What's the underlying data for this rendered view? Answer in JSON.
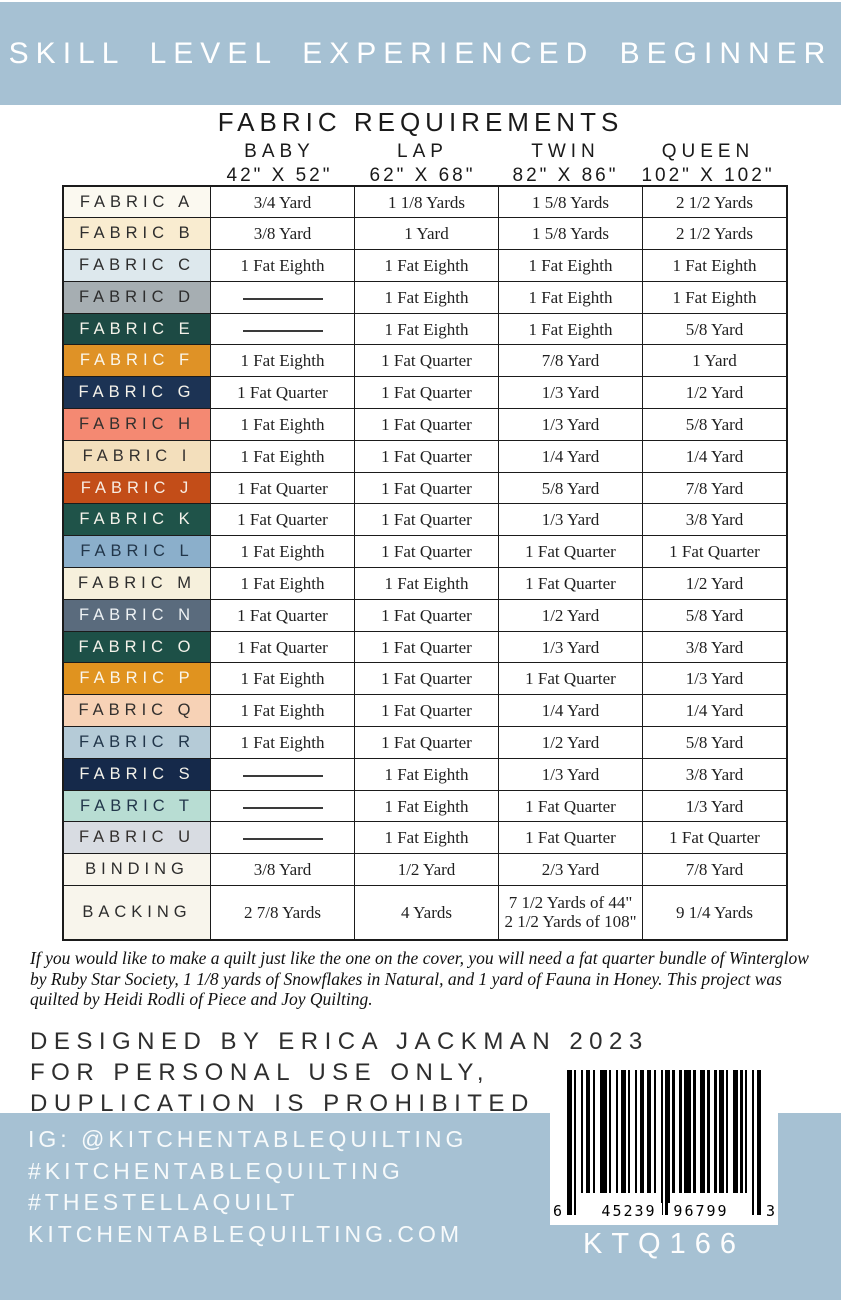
{
  "banner": {
    "text": "SKILL LEVEL EXPERIENCED BEGINNER",
    "bg_color": "#a6c1d3"
  },
  "table": {
    "title": "FABRIC REQUIREMENTS",
    "columns": [
      {
        "name": "BABY",
        "size": "42\" X 52\""
      },
      {
        "name": "LAP",
        "size": "62\" X 68\""
      },
      {
        "name": "TWIN",
        "size": "82\" X 86\""
      },
      {
        "name": "QUEEN",
        "size": "102\" X 102\""
      }
    ],
    "rows": [
      {
        "label": "FABRIC A",
        "bg": "#fbf9f0",
        "fg": "#2d2d2d",
        "values": [
          "3/4 Yard",
          "1 1/8 Yards",
          "1 5/8 Yards",
          "2 1/2 Yards"
        ]
      },
      {
        "label": "FABRIC B",
        "bg": "#f9ecd0",
        "fg": "#2d2d2d",
        "values": [
          "3/8 Yard",
          "1 Yard",
          "1 5/8 Yards",
          "2 1/2 Yards"
        ]
      },
      {
        "label": "FABRIC C",
        "bg": "#dde8ed",
        "fg": "#2d2d2d",
        "values": [
          "1 Fat Eighth",
          "1 Fat Eighth",
          "1 Fat Eighth",
          "1 Fat Eighth"
        ]
      },
      {
        "label": "FABRIC D",
        "bg": "#a6aeb2",
        "fg": "#2d2d2d",
        "values": [
          "",
          "1 Fat Eighth",
          "1 Fat Eighth",
          "1 Fat Eighth"
        ]
      },
      {
        "label": "FABRIC E",
        "bg": "#1d4a44",
        "fg": "#f4f2ea",
        "values": [
          "",
          "1 Fat Eighth",
          "1 Fat Eighth",
          "5/8 Yard"
        ]
      },
      {
        "label": "FABRIC F",
        "bg": "#df9226",
        "fg": "#faf6ec",
        "values": [
          "1 Fat Eighth",
          "1 Fat Quarter",
          "7/8 Yard",
          "1 Yard"
        ]
      },
      {
        "label": "FABRIC G",
        "bg": "#1c3354",
        "fg": "#f4f2ea",
        "values": [
          "1 Fat Quarter",
          "1 Fat Quarter",
          "1/3 Yard",
          "1/2 Yard"
        ]
      },
      {
        "label": "FABRIC H",
        "bg": "#f48972",
        "fg": "#33302e",
        "values": [
          "1 Fat Eighth",
          "1 Fat Quarter",
          "1/3 Yard",
          "5/8 Yard"
        ]
      },
      {
        "label": "FABRIC I",
        "bg": "#f3dfbc",
        "fg": "#33302e",
        "values": [
          "1 Fat Eighth",
          "1 Fat Quarter",
          "1/4 Yard",
          "1/4 Yard"
        ]
      },
      {
        "label": "FABRIC J",
        "bg": "#c34d18",
        "fg": "#f7ece2",
        "values": [
          "1 Fat Quarter",
          "1 Fat Quarter",
          "5/8 Yard",
          "7/8 Yard"
        ]
      },
      {
        "label": "FABRIC K",
        "bg": "#1f5349",
        "fg": "#f4f2ea",
        "values": [
          "1 Fat Quarter",
          "1 Fat Quarter",
          "1/3 Yard",
          "3/8 Yard"
        ]
      },
      {
        "label": "FABRIC L",
        "bg": "#8bafcb",
        "fg": "#22364a",
        "values": [
          "1 Fat Eighth",
          "1 Fat Quarter",
          "1 Fat Quarter",
          "1 Fat Quarter"
        ]
      },
      {
        "label": "FABRIC M",
        "bg": "#f6f0dc",
        "fg": "#2d2d2d",
        "values": [
          "1 Fat Eighth",
          "1 Fat Eighth",
          "1 Fat Quarter",
          "1/2 Yard"
        ]
      },
      {
        "label": "FABRIC N",
        "bg": "#5a6b7d",
        "fg": "#eef2f4",
        "values": [
          "1 Fat Quarter",
          "1 Fat Quarter",
          "1/2 Yard",
          "5/8 Yard"
        ]
      },
      {
        "label": "FABRIC O",
        "bg": "#1d5047",
        "fg": "#f4f2ea",
        "values": [
          "1 Fat Quarter",
          "1 Fat Quarter",
          "1/3 Yard",
          "3/8 Yard"
        ]
      },
      {
        "label": "FABRIC P",
        "bg": "#e0931f",
        "fg": "#faf6ec",
        "values": [
          "1 Fat Eighth",
          "1 Fat Quarter",
          "1 Fat Quarter",
          "1/3 Yard"
        ]
      },
      {
        "label": "FABRIC Q",
        "bg": "#f7d2b6",
        "fg": "#33302e",
        "values": [
          "1 Fat Eighth",
          "1 Fat Quarter",
          "1/4 Yard",
          "1/4 Yard"
        ]
      },
      {
        "label": "FABRIC R",
        "bg": "#b5cbd7",
        "fg": "#22364a",
        "values": [
          "1 Fat Eighth",
          "1 Fat Quarter",
          "1/2 Yard",
          "5/8 Yard"
        ]
      },
      {
        "label": "FABRIC S",
        "bg": "#15294a",
        "fg": "#f4f2ea",
        "values": [
          "",
          "1 Fat Eighth",
          "1/3 Yard",
          "3/8 Yard"
        ]
      },
      {
        "label": "FABRIC T",
        "bg": "#b8ddd3",
        "fg": "#22364a",
        "values": [
          "",
          "1 Fat Eighth",
          "1 Fat Quarter",
          "1/3 Yard"
        ]
      },
      {
        "label": "FABRIC U",
        "bg": "#d8dce2",
        "fg": "#33302e",
        "values": [
          "",
          "1 Fat Eighth",
          "1 Fat Quarter",
          "1 Fat Quarter"
        ]
      },
      {
        "label": "BINDING",
        "bg": "#f8f5ec",
        "fg": "#2d2d2d",
        "values": [
          "3/8 Yard",
          "1/2 Yard",
          "2/3 Yard",
          "7/8 Yard"
        ]
      },
      {
        "label": "BACKING",
        "bg": "#f8f5ec",
        "fg": "#2d2d2d",
        "tall": true,
        "values": [
          "2 7/8 Yards",
          "4 Yards",
          "7 1/2 Yards of 44\"\n2 1/2 Yards of 108\"",
          "9 1/4 Yards"
        ]
      }
    ]
  },
  "note": "If you would like to make a quilt just like the one on the cover, you will need a fat quarter bundle of Winterglow by Ruby Star Society, 1 1/8 yards of Snowflakes in Natural, and 1 yard of Fauna in Honey. This project was quilted by Heidi Rodli of Piece and Joy Quilting.",
  "designed_lines": [
    "DESIGNED BY ERICA JACKMAN 2023",
    "FOR PERSONAL USE ONLY,",
    "DUPLICATION IS PROHIBITED"
  ],
  "social_lines": [
    "IG: @KITCHENTABLEQUILTING",
    "#KITCHENTABLEQUILTING",
    "#THESTELLAQUILT",
    "KITCHENTABLEQUILTING.COM"
  ],
  "barcode": {
    "left_digit": "6",
    "group1": "45239",
    "group2": "96799",
    "right_digit": "3",
    "sku": "KTQ166"
  },
  "colors": {
    "accent_blue": "#a6c1d3",
    "table_border": "#1b1b1b"
  }
}
